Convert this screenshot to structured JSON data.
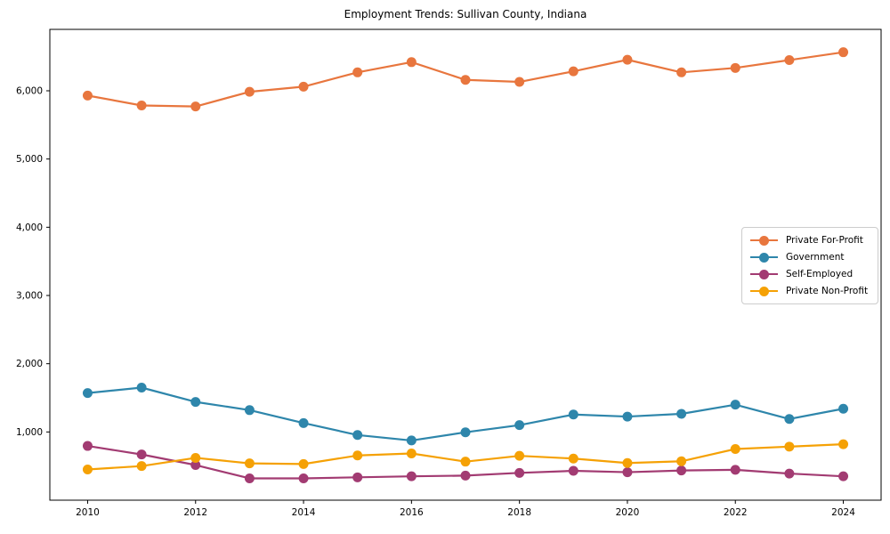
{
  "figure": {
    "title": "Employment Trends: Sullivan County, Indiana"
  },
  "chart_data": {
    "type": "line",
    "title": "Employment Trends: Sullivan County, Indiana",
    "xlabel": "",
    "ylabel": "",
    "x": [
      2010,
      2011,
      2012,
      2013,
      2014,
      2015,
      2016,
      2017,
      2018,
      2019,
      2020,
      2021,
      2022,
      2023,
      2024
    ],
    "series": [
      {
        "name": "Private For-Profit",
        "color": "#E8763E",
        "values": [
          5930,
          5785,
          5770,
          5985,
          6060,
          6270,
          6420,
          6160,
          6130,
          6285,
          6455,
          6270,
          6335,
          6450,
          6565
        ]
      },
      {
        "name": "Government",
        "color": "#2E86AB",
        "values": [
          1570,
          1650,
          1440,
          1320,
          1130,
          955,
          875,
          995,
          1100,
          1255,
          1225,
          1265,
          1400,
          1190,
          1340
        ]
      },
      {
        "name": "Self-Employed",
        "color": "#A23B72",
        "values": [
          795,
          670,
          515,
          320,
          320,
          335,
          350,
          360,
          400,
          430,
          410,
          435,
          445,
          390,
          350
        ]
      },
      {
        "name": "Private Non-Profit",
        "color": "#F5A105",
        "values": [
          450,
          500,
          620,
          540,
          530,
          655,
          685,
          565,
          650,
          610,
          545,
          570,
          750,
          785,
          820
        ]
      }
    ],
    "xlim": [
      2009.3,
      2024.7
    ],
    "ylim": [
      0,
      6900
    ],
    "xticks": [
      2010,
      2012,
      2014,
      2016,
      2018,
      2020,
      2022,
      2024
    ],
    "yticks": [
      1000,
      2000,
      3000,
      4000,
      5000,
      6000
    ],
    "ytick_labels": [
      "1,000",
      "2,000",
      "3,000",
      "4,000",
      "5,000",
      "6,000"
    ],
    "grid": false,
    "marker": "circle",
    "legend_position": "center right"
  }
}
